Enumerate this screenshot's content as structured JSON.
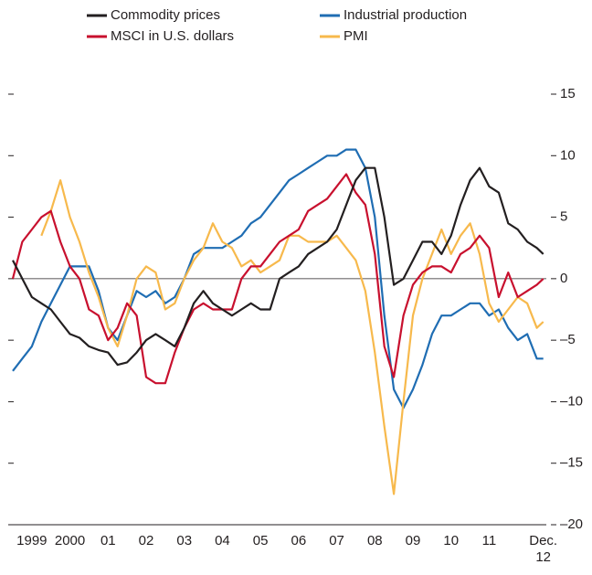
{
  "chart_data": {
    "type": "line",
    "x": [
      1999,
      1999.25,
      1999.5,
      1999.75,
      2000,
      2000.25,
      2000.5,
      2000.75,
      2001,
      2001.25,
      2001.5,
      2001.75,
      2002,
      2002.25,
      2002.5,
      2002.75,
      2003,
      2003.25,
      2003.5,
      2003.75,
      2004,
      2004.25,
      2004.5,
      2004.75,
      2005,
      2005.25,
      2005.5,
      2005.75,
      2006,
      2006.25,
      2006.5,
      2006.75,
      2007,
      2007.25,
      2007.5,
      2007.75,
      2008,
      2008.25,
      2008.5,
      2008.75,
      2009,
      2009.25,
      2009.5,
      2009.75,
      2010,
      2010.25,
      2010.5,
      2010.75,
      2011,
      2011.25,
      2011.5,
      2011.75,
      2012,
      2012.25,
      2012.5,
      2012.75,
      2012.92
    ],
    "series": [
      {
        "name": "Commodity prices",
        "color": "#231f20",
        "values": [
          1.5,
          0,
          -1.5,
          -2,
          -2.5,
          -3.5,
          -4.5,
          -4.8,
          -5.5,
          -5.8,
          -6,
          -7,
          -6.8,
          -6,
          -5,
          -4.5,
          -5,
          -5.5,
          -4,
          -2,
          -1,
          -2,
          -2.5,
          -3,
          -2.5,
          -2,
          -2.5,
          -2.5,
          0,
          0.5,
          1,
          2,
          2.5,
          3,
          4,
          6,
          8,
          9,
          9,
          5,
          -0.5,
          0,
          1.5,
          3,
          3,
          2,
          3.5,
          6,
          8,
          9,
          7.5,
          7,
          4.5,
          4,
          3,
          2.5,
          2
        ]
      },
      {
        "name": "Industrial production",
        "color": "#1f6db3",
        "values": [
          -7.5,
          -6.5,
          -5.5,
          -3.5,
          -2,
          -0.5,
          1,
          1,
          1,
          -1,
          -4,
          -5,
          -3,
          -1,
          -1.5,
          -1,
          -2,
          -1.5,
          0,
          2,
          2.5,
          2.5,
          2.5,
          3,
          3.5,
          4.5,
          5,
          6,
          7,
          8,
          8.5,
          9,
          9.5,
          10,
          10,
          10.5,
          10.5,
          9,
          5,
          -3,
          -9,
          -10.5,
          -9,
          -7,
          -4.5,
          -3,
          -3,
          -2.5,
          -2,
          -2,
          -3,
          -2.5,
          -4,
          -5,
          -4.5,
          -6.5,
          -6.5
        ]
      },
      {
        "name": "MSCI in U.S. dollars",
        "color": "#c8102e",
        "values": [
          0,
          3,
          4,
          5,
          5.5,
          3,
          1,
          0,
          -2.5,
          -3,
          -5,
          -4,
          -2,
          -3,
          -8,
          -8.5,
          -8.5,
          -6,
          -4,
          -2.5,
          -2,
          -2.5,
          -2.5,
          -2.5,
          0,
          1,
          1,
          2,
          3,
          3.5,
          4,
          5.5,
          6,
          6.5,
          7.5,
          8.5,
          7,
          6,
          2,
          -5.5,
          -8,
          -3,
          -0.5,
          0.5,
          1,
          1,
          0.5,
          2,
          2.5,
          3.5,
          2.5,
          -1.5,
          0.5,
          -1.5,
          -1,
          -0.5,
          0
        ]
      },
      {
        "name": "PMI",
        "color": "#f7b94c",
        "values": [
          null,
          null,
          null,
          3.5,
          5.5,
          8,
          5,
          3,
          0.5,
          -1.5,
          -4,
          -5.5,
          -3,
          0,
          1,
          0.5,
          -2.5,
          -2,
          0,
          1.5,
          2.5,
          4.5,
          3,
          2.5,
          1,
          1.5,
          0.5,
          1,
          1.5,
          3.5,
          3.5,
          3,
          3,
          3,
          3.5,
          2.5,
          1.5,
          -1,
          -6,
          -12,
          -17.5,
          -10,
          -3,
          0,
          2,
          4,
          2,
          3.5,
          4.5,
          2,
          -2,
          -3.5,
          -2.5,
          -1.5,
          -2,
          -4,
          -3.5
        ]
      }
    ],
    "xlim": [
      1999,
      2013
    ],
    "xticks": [
      {
        "value": 1999.5,
        "label": "1999"
      },
      {
        "value": 2000.5,
        "label": "2000"
      },
      {
        "value": 2001.5,
        "label": "01"
      },
      {
        "value": 2002.5,
        "label": "02"
      },
      {
        "value": 2003.5,
        "label": "03"
      },
      {
        "value": 2004.5,
        "label": "04"
      },
      {
        "value": 2005.5,
        "label": "05"
      },
      {
        "value": 2006.5,
        "label": "06"
      },
      {
        "value": 2007.5,
        "label": "07"
      },
      {
        "value": 2008.5,
        "label": "08"
      },
      {
        "value": 2009.5,
        "label": "09"
      },
      {
        "value": 2010.5,
        "label": "10"
      },
      {
        "value": 2011.5,
        "label": "11"
      },
      {
        "value": 2012.92,
        "label": "Dec.\n12"
      }
    ],
    "ylim": [
      -20,
      15
    ],
    "yticks": [
      15,
      10,
      5,
      0,
      {
        "value": -5,
        "label": "–5"
      },
      {
        "value": -10,
        "label": "–10"
      },
      {
        "value": -15,
        "label": "–15"
      },
      {
        "value": -20,
        "label": "–20"
      }
    ]
  }
}
